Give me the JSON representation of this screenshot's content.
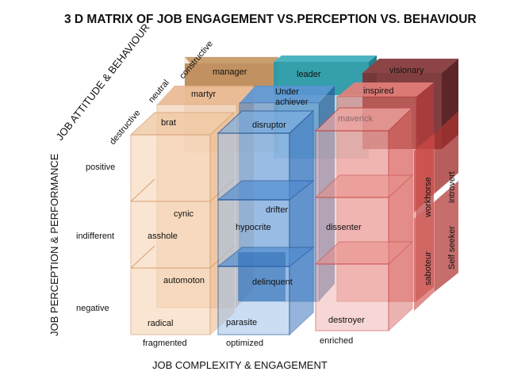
{
  "title": "3 D MATRIX OF JOB ENGAGEMENT VS.PERCEPTION VS. BEHAVIOUR",
  "axes": {
    "attitude": "JOB ATTITUDE & BEHAVIOUR",
    "perception": "JOB PERCEPTION & PERFORMANCE",
    "complexity": "JOB COMPLEXITY &  ENGAGEMENT"
  },
  "depth_levels": [
    "destructive",
    "neutral",
    "constructive"
  ],
  "row_levels": [
    "positive",
    "indifferent",
    "negative"
  ],
  "column_levels": [
    "fragmented",
    "optimized",
    "enriched"
  ],
  "cells": {
    "manager": "manager",
    "leader": "leader",
    "visionary": "visionary",
    "martyr": "martyr",
    "underachiever_1": "Under",
    "underachiever_2": "achiever",
    "inspired": "inspired",
    "brat": "brat",
    "disruptor": "disruptor",
    "maverick": "maverick",
    "cynic": "cynic",
    "drifter": "drifter",
    "asshole": "asshole",
    "hypocrite": "hypocrite",
    "dissenter": "dissenter",
    "automoton": "automoton",
    "delinquent": "delinquent",
    "radical": "radical",
    "parasite": "parasite",
    "destroyer": "destroyer",
    "workhorse": "workhorse",
    "introvert": "introvert",
    "saboteur": "saboteur",
    "self_seeker": "Self seeker"
  },
  "colors": {
    "orange_family": "#e8a978",
    "blue_family": "#2f6fb8",
    "teal": "#2a9aa8",
    "red_family": "#d9534f",
    "visionary": "#7a3436",
    "manager": "#b5804a"
  }
}
